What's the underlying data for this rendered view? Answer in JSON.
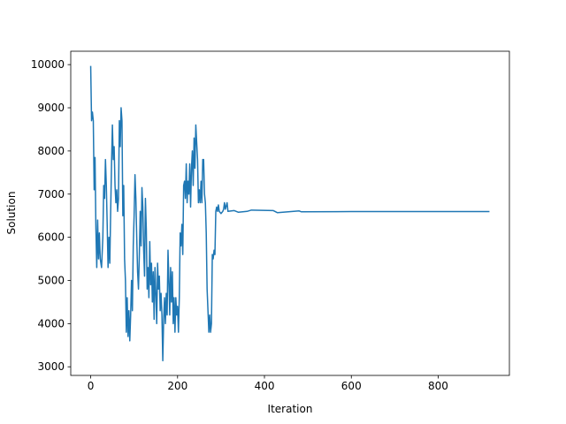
{
  "chart_data": {
    "type": "line",
    "x_label": "Iteration",
    "y_label": "Solution",
    "color": "#1f77b4",
    "xlim": [
      -45.9,
      963.9
    ],
    "ylim": [
      2800,
      10310
    ],
    "xticks": [
      0,
      200,
      400,
      600,
      800
    ],
    "yticks": [
      3000,
      4000,
      5000,
      6000,
      7000,
      8000,
      9000,
      10000
    ],
    "x": [
      0,
      2,
      4,
      6,
      8,
      10,
      12,
      14,
      16,
      18,
      20,
      22,
      25,
      28,
      30,
      32,
      34,
      36,
      38,
      40,
      42,
      44,
      46,
      48,
      50,
      52,
      54,
      56,
      58,
      60,
      62,
      64,
      66,
      68,
      70,
      72,
      74,
      76,
      78,
      80,
      82,
      84,
      86,
      88,
      90,
      92,
      94,
      96,
      98,
      100,
      102,
      104,
      106,
      108,
      110,
      112,
      114,
      116,
      118,
      120,
      122,
      124,
      126,
      128,
      130,
      132,
      134,
      136,
      138,
      140,
      142,
      144,
      146,
      148,
      150,
      152,
      154,
      156,
      158,
      160,
      162,
      164,
      166,
      168,
      170,
      172,
      174,
      176,
      178,
      180,
      182,
      184,
      186,
      188,
      190,
      192,
      194,
      196,
      198,
      200,
      202,
      204,
      206,
      208,
      210,
      212,
      214,
      216,
      218,
      220,
      222,
      224,
      226,
      228,
      230,
      232,
      234,
      236,
      238,
      240,
      242,
      244,
      246,
      248,
      250,
      252,
      254,
      256,
      258,
      260,
      262,
      264,
      266,
      268,
      270,
      272,
      274,
      276,
      278,
      280,
      282,
      284,
      286,
      288,
      290,
      292,
      294,
      296,
      300,
      304,
      306,
      308,
      310,
      314,
      316,
      330,
      340,
      360,
      370,
      420,
      430,
      480,
      485,
      600,
      918
    ],
    "values": [
      9970,
      8700,
      8900,
      8700,
      7100,
      7850,
      6200,
      5300,
      6400,
      5500,
      6100,
      5500,
      5300,
      6000,
      7200,
      6900,
      7800,
      7200,
      6300,
      5300,
      6000,
      5400,
      6600,
      7700,
      8600,
      7800,
      8100,
      7200,
      6800,
      7100,
      6600,
      6900,
      8700,
      8100,
      9000,
      8700,
      6500,
      7200,
      5500,
      5000,
      3800,
      4600,
      3700,
      4300,
      3600,
      4200,
      5000,
      4300,
      5800,
      6500,
      7450,
      6900,
      6000,
      5200,
      4800,
      5600,
      6600,
      5800,
      7150,
      6700,
      5700,
      5100,
      6900,
      6200,
      4800,
      5300,
      4600,
      5900,
      4900,
      5400,
      4500,
      5200,
      4100,
      5300,
      4700,
      4000,
      5400,
      4800,
      5100,
      4300,
      4700,
      4200,
      3140,
      4100,
      4600,
      4000,
      4700,
      4200,
      5700,
      5000,
      4200,
      5300,
      4500,
      5200,
      4000,
      4600,
      3800,
      4600,
      4200,
      4400,
      3800,
      4600,
      6100,
      5800,
      6300,
      5600,
      7200,
      7300,
      6900,
      7700,
      6800,
      7300,
      7000,
      7700,
      6700,
      7600,
      8000,
      7200,
      8300,
      7600,
      8600,
      8200,
      7800,
      6800,
      7100,
      6800,
      7300,
      6800,
      7800,
      7800,
      7000,
      6800,
      6100,
      4800,
      4300,
      3800,
      4200,
      3800,
      4000,
      5600,
      5500,
      5700,
      5600,
      6600,
      6700,
      6600,
      6750,
      6600,
      6550,
      6600,
      6650,
      6800,
      6650,
      6800,
      6600,
      6620,
      6580,
      6600,
      6630,
      6620,
      6570,
      6610,
      6590,
      6595,
      6595
    ]
  }
}
